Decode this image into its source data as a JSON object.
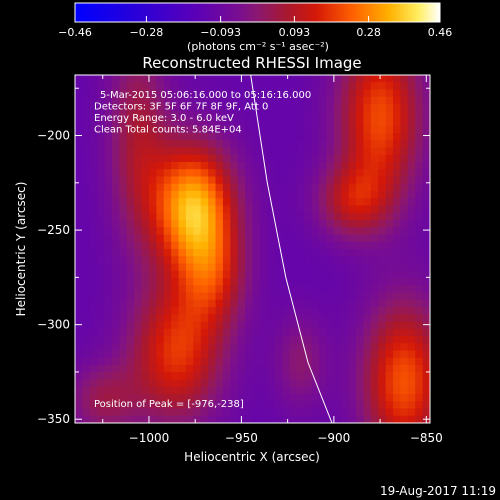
{
  "chart_data": {
    "type": "heatmap",
    "title": "Reconstructed RHESSI Image",
    "xlabel": "Heliocentric X (arcsec)",
    "ylabel": "Heliocentric Y (arcsec)",
    "xlim": [
      -1040,
      -848
    ],
    "ylim": [
      -352,
      -168
    ],
    "x_ticks": [
      -1000,
      -950,
      -900,
      -850
    ],
    "x_tick_labels": [
      "−1000",
      "−950",
      "−900",
      "−850"
    ],
    "y_ticks": [
      -200,
      -250,
      -300,
      -350
    ],
    "y_tick_labels": [
      "−200",
      "−250",
      "−300",
      "−350"
    ],
    "colorbar": {
      "ticks": [
        -0.46,
        -0.28,
        -0.093,
        0.093,
        0.28,
        0.46
      ],
      "tick_labels": [
        "−0.46",
        "−0.28",
        "−0.093",
        "0.093",
        "0.28",
        "0.46"
      ],
      "unit_label": "(photons cm⁻² s⁻¹ asec⁻²)",
      "range": [
        -0.46,
        0.46
      ]
    },
    "annotations": [
      "5-Mar-2015 05:06:16.000 to 05:16:16.000",
      "Detectors: 3F 5F 6F 7F 8F 9F, Att 0",
      "Energy Range: 3.0 - 6.0 keV",
      "Clean    Total counts: 5.84E+04"
    ],
    "peak": {
      "label": "Position of Peak = [-976,-238]",
      "x": -976,
      "y": -238
    },
    "limb_line": [
      [
        -945,
        -168
      ],
      [
        -936,
        -225
      ],
      [
        -926,
        -275
      ],
      [
        -914,
        -320
      ],
      [
        -901,
        -352
      ]
    ],
    "sources": [
      {
        "x": -976,
        "y": -238,
        "sx": 16,
        "sy": 24,
        "amp": 0.46
      },
      {
        "x": -1006,
        "y": -200,
        "sx": 12,
        "sy": 40,
        "amp": 0.18
      },
      {
        "x": -965,
        "y": -275,
        "sx": 13,
        "sy": 20,
        "amp": 0.2
      },
      {
        "x": -985,
        "y": -315,
        "sx": 18,
        "sy": 26,
        "amp": 0.3
      },
      {
        "x": -1025,
        "y": -340,
        "sx": 14,
        "sy": 14,
        "amp": 0.15
      },
      {
        "x": -875,
        "y": -190,
        "sx": 16,
        "sy": 32,
        "amp": 0.33
      },
      {
        "x": -890,
        "y": -235,
        "sx": 14,
        "sy": 14,
        "amp": 0.2
      },
      {
        "x": -862,
        "y": -330,
        "sx": 16,
        "sy": 30,
        "amp": 0.34
      },
      {
        "x": -918,
        "y": -320,
        "sx": 10,
        "sy": 18,
        "amp": 0.12
      }
    ]
  },
  "footer": {
    "timestamp": "19-Aug-2017 11:19"
  }
}
